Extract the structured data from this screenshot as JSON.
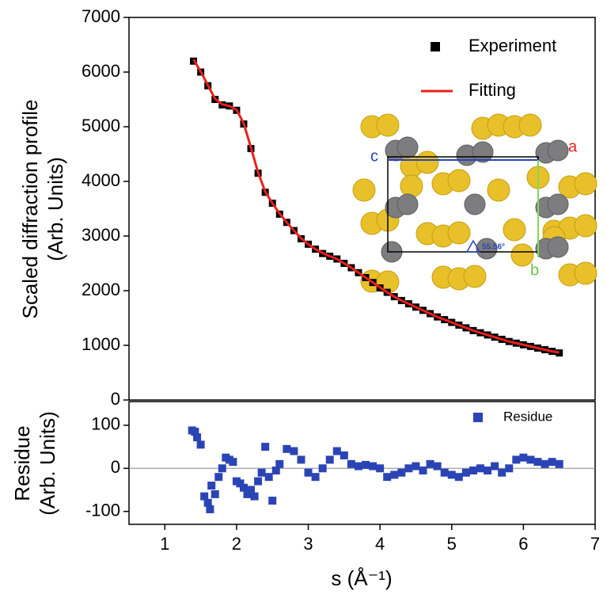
{
  "chart_data": [
    {
      "type": "line",
      "ylabel": [
        "Scaled diffraction profile",
        "(Arb. Units)"
      ],
      "xlim": [
        0.5,
        7
      ],
      "ylim": [
        0,
        7000
      ],
      "yticks": [
        0,
        1000,
        2000,
        3000,
        4000,
        5000,
        6000,
        7000
      ],
      "legend": "top-right",
      "x": [
        1.4,
        1.5,
        1.6,
        1.7,
        1.8,
        1.9,
        2.0,
        2.1,
        2.2,
        2.3,
        2.4,
        2.5,
        2.6,
        2.7,
        2.8,
        2.9,
        3.0,
        3.1,
        3.2,
        3.3,
        3.4,
        3.5,
        3.6,
        3.7,
        3.8,
        3.9,
        4.0,
        4.1,
        4.2,
        4.3,
        4.4,
        4.5,
        4.6,
        4.7,
        4.8,
        4.9,
        5.0,
        5.1,
        5.2,
        5.3,
        5.4,
        5.5,
        5.6,
        5.7,
        5.8,
        5.9,
        6.0,
        6.1,
        6.2,
        6.3,
        6.4,
        6.5
      ],
      "series": [
        {
          "name": "Experiment",
          "color": "#000000",
          "style": "markers",
          "values": [
            6200,
            6000,
            5750,
            5500,
            5400,
            5380,
            5300,
            5050,
            4600,
            4150,
            3800,
            3600,
            3400,
            3250,
            3100,
            2950,
            2850,
            2760,
            2680,
            2630,
            2580,
            2500,
            2420,
            2330,
            2240,
            2150,
            2050,
            1970,
            1890,
            1820,
            1760,
            1700,
            1640,
            1580,
            1520,
            1470,
            1420,
            1370,
            1320,
            1270,
            1230,
            1190,
            1150,
            1110,
            1070,
            1040,
            1010,
            980,
            950,
            920,
            890,
            860
          ]
        },
        {
          "name": "Fitting",
          "color": "#e8201c",
          "style": "line",
          "values": [
            6230,
            6010,
            5760,
            5510,
            5410,
            5380,
            5310,
            5060,
            4620,
            4160,
            3810,
            3600,
            3410,
            3250,
            3100,
            2960,
            2850,
            2760,
            2690,
            2630,
            2580,
            2500,
            2420,
            2330,
            2240,
            2150,
            2060,
            1970,
            1890,
            1820,
            1760,
            1700,
            1640,
            1580,
            1520,
            1470,
            1420,
            1370,
            1320,
            1270,
            1230,
            1190,
            1150,
            1110,
            1070,
            1040,
            1010,
            980,
            950,
            920,
            890,
            870
          ]
        }
      ],
      "inset_labels": [
        "c",
        "a",
        "b",
        "55.56°"
      ]
    },
    {
      "type": "scatter",
      "ylabel": [
        "Residue",
        "(Arb. Units)"
      ],
      "xlabel": "s (Å⁻¹)",
      "xlim": [
        0.5,
        7
      ],
      "xticks": [
        1,
        2,
        3,
        4,
        5,
        6,
        7
      ],
      "ylim": [
        -130,
        155
      ],
      "yticks": [
        -100,
        0,
        100
      ],
      "zero_line": true,
      "legend": "top-right",
      "series": [
        {
          "name": "Residue",
          "color": "#2b44b5",
          "x": [
            1.38,
            1.42,
            1.45,
            1.5,
            1.55,
            1.6,
            1.63,
            1.65,
            1.7,
            1.75,
            1.8,
            1.85,
            1.9,
            1.95,
            2.0,
            2.05,
            2.1,
            2.15,
            2.2,
            2.25,
            2.3,
            2.35,
            2.4,
            2.45,
            2.5,
            2.55,
            2.6,
            2.7,
            2.8,
            2.9,
            3.0,
            3.1,
            3.2,
            3.3,
            3.4,
            3.5,
            3.6,
            3.7,
            3.8,
            3.9,
            4.0,
            4.1,
            4.2,
            4.3,
            4.4,
            4.5,
            4.6,
            4.7,
            4.8,
            4.9,
            5.0,
            5.1,
            5.2,
            5.3,
            5.4,
            5.5,
            5.6,
            5.7,
            5.8,
            5.9,
            6.0,
            6.1,
            6.2,
            6.3,
            6.4,
            6.5
          ],
          "values": [
            88,
            85,
            72,
            55,
            -65,
            -80,
            -95,
            -40,
            -60,
            -20,
            0,
            25,
            20,
            15,
            -30,
            -35,
            -45,
            -60,
            -50,
            -65,
            -30,
            -10,
            50,
            -20,
            -75,
            -5,
            10,
            45,
            40,
            20,
            -10,
            -20,
            0,
            20,
            40,
            30,
            10,
            5,
            8,
            5,
            0,
            -20,
            -15,
            -10,
            0,
            5,
            -5,
            10,
            5,
            -10,
            -15,
            -20,
            -10,
            -5,
            0,
            -5,
            5,
            -10,
            0,
            20,
            25,
            20,
            15,
            10,
            15,
            10
          ]
        }
      ]
    }
  ]
}
